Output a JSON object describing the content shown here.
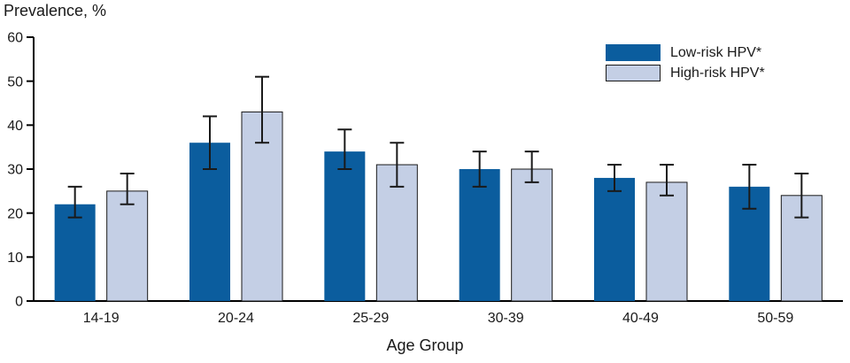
{
  "chart_data": {
    "type": "bar",
    "title": "Prevalence, %",
    "xlabel": "Age Group",
    "categories": [
      "14-19",
      "20-24",
      "25-29",
      "30-39",
      "40-49",
      "50-59"
    ],
    "series": [
      {
        "name": "Low-risk HPV*",
        "color": "#0b5d9e",
        "border": null,
        "values": [
          22,
          36,
          34,
          30,
          28,
          26
        ],
        "err_low": [
          19,
          30,
          30,
          26,
          25,
          21
        ],
        "err_high": [
          26,
          42,
          39,
          34,
          31,
          31
        ]
      },
      {
        "name": "High-risk HPV*",
        "color": "#c4cfe5",
        "border": "#1a1a1a",
        "values": [
          25,
          43,
          31,
          30,
          27,
          24
        ],
        "err_low": [
          22,
          36,
          26,
          27,
          24,
          19
        ],
        "err_high": [
          29,
          51,
          36,
          34,
          31,
          29
        ]
      }
    ],
    "ylim": [
      0,
      60
    ],
    "ytick_step": 10,
    "grid": false,
    "legend_position": "top-right",
    "error_bar_color": "#1a1a1a",
    "axis_color": "#000000"
  }
}
